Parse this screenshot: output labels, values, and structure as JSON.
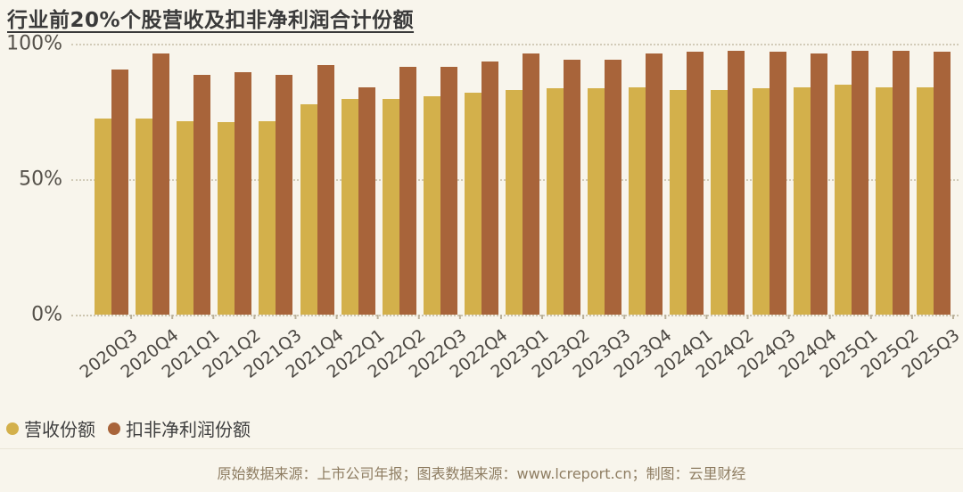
{
  "title": "行业前20%个股营收及扣非净利润合计份额",
  "colors": {
    "background": "#f8f5ec",
    "revenue_bar": "#d3b04b",
    "profit_bar": "#a8643a",
    "gridline": "#d2cbb8",
    "title_text": "#3a3a3a",
    "axis_text": "#55514a",
    "footer_text": "#8e7d62"
  },
  "chart_data": {
    "type": "bar",
    "title": "行业前20%个股营收及扣非净利润合计份额",
    "categories": [
      "2020Q3",
      "2020Q4",
      "2021Q1",
      "2021Q2",
      "2021Q3",
      "2021Q4",
      "2022Q1",
      "2022Q2",
      "2022Q3",
      "2022Q4",
      "2023Q1",
      "2023Q2",
      "2023Q3",
      "2023Q4",
      "2024Q1",
      "2024Q2",
      "2024Q3",
      "2024Q4",
      "2025Q1",
      "2025Q2",
      "2025Q3"
    ],
    "series": [
      {
        "name": "营收份额",
        "color": "#d3b04b",
        "values": [
          72.5,
          72.5,
          71.5,
          71,
          71.5,
          77.5,
          79.5,
          79.5,
          80.5,
          82,
          83,
          83.5,
          83.5,
          84,
          83,
          83,
          83.5,
          84,
          85,
          84,
          84
        ]
      },
      {
        "name": "扣非净利润份额",
        "color": "#a8643a",
        "values": [
          90.5,
          96.5,
          88.5,
          89.5,
          88.5,
          92,
          84,
          91.5,
          91.5,
          93.5,
          96.5,
          94,
          94,
          96.5,
          97,
          97.5,
          97,
          96.5,
          97.5,
          97.5,
          97
        ]
      }
    ],
    "xlabel": "",
    "ylabel": "",
    "ylim": [
      0,
      100
    ],
    "yticks": [
      {
        "label": "100%",
        "value": 100
      },
      {
        "label": "50%",
        "value": 50
      },
      {
        "label": "0%",
        "value": 0
      }
    ],
    "grid": "horizontal-dotted",
    "legend_position": "bottom-left",
    "x_label_rotation": -38
  },
  "legend": {
    "items": [
      {
        "label": "营收份额",
        "color": "#d3b04b"
      },
      {
        "label": "扣非净利润份额",
        "color": "#a8643a"
      }
    ]
  },
  "footer": {
    "text": "原始数据来源：上市公司年报；图表数据来源：www.lcreport.cn；制图：云里财经"
  }
}
